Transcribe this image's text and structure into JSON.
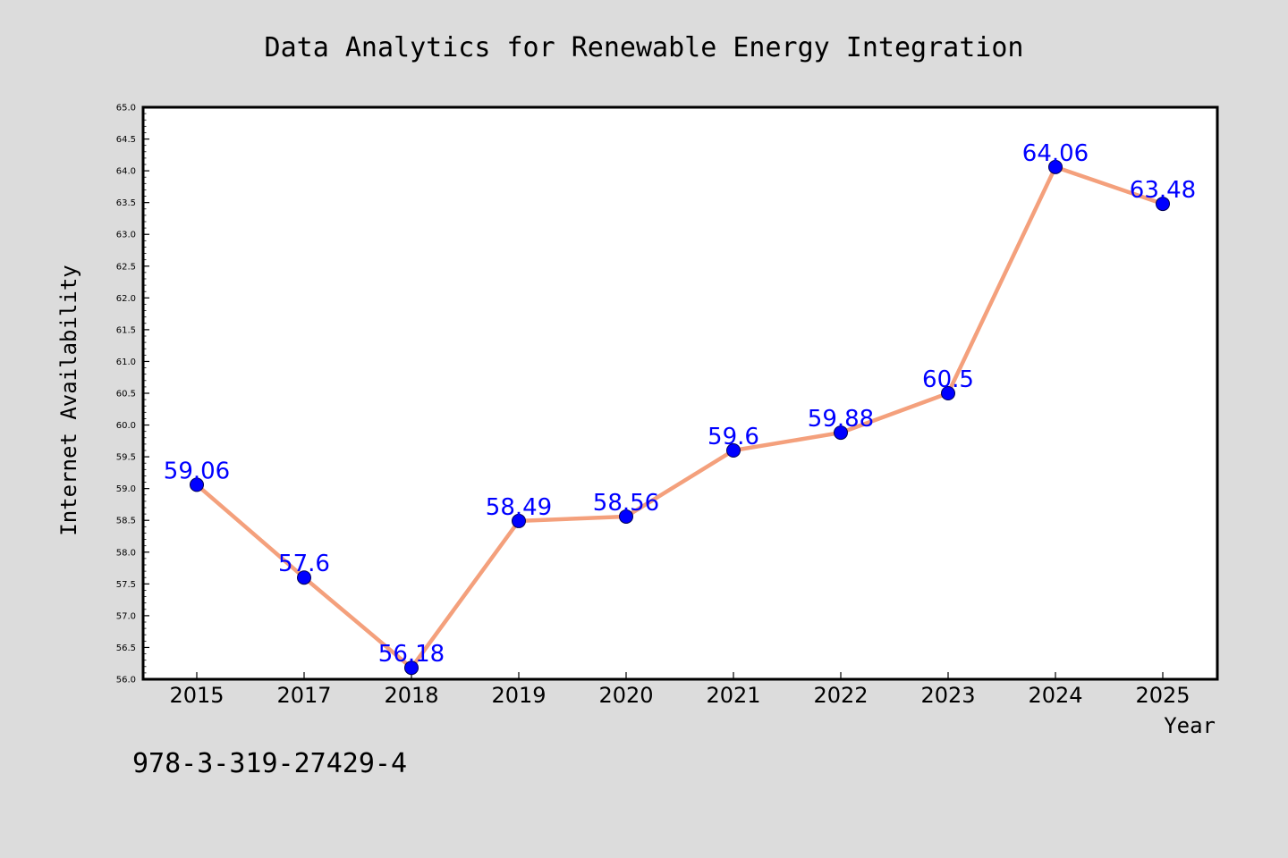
{
  "colors": {
    "background": "#dcdcdc",
    "plot_background": "#ffffff",
    "line": "#f4a07c",
    "marker": "#0000ff",
    "label": "#0000ff",
    "axis": "#000000"
  },
  "footer": {
    "isbn": "978-3-319-27429-4"
  },
  "chart_data": {
    "type": "line",
    "title": "Data Analytics for Renewable Energy Integration",
    "xlabel": "Year",
    "ylabel": "Internet Availability",
    "categories": [
      "2015",
      "2017",
      "2018",
      "2019",
      "2020",
      "2021",
      "2022",
      "2023",
      "2024",
      "2025"
    ],
    "series": [
      {
        "values": [
          59.06,
          57.6,
          56.18,
          58.49,
          58.56,
          59.6,
          59.88,
          60.5,
          64.06,
          63.48
        ],
        "data_labels": [
          "59.06",
          "57.6",
          "56.18",
          "58.49",
          "58.56",
          "59.6",
          "59.88",
          "60.5",
          "64.06",
          "63.48"
        ]
      }
    ],
    "ylim": [
      56.0,
      65.0
    ],
    "yticks": [
      "56.0",
      "56.5",
      "57.0",
      "57.5",
      "58.0",
      "58.5",
      "59.0",
      "59.5",
      "60.0",
      "60.5",
      "61.0",
      "61.5",
      "62.0",
      "62.5",
      "63.0",
      "63.5",
      "64.0",
      "64.5",
      "65.0"
    ],
    "grid": false,
    "legend": false
  }
}
